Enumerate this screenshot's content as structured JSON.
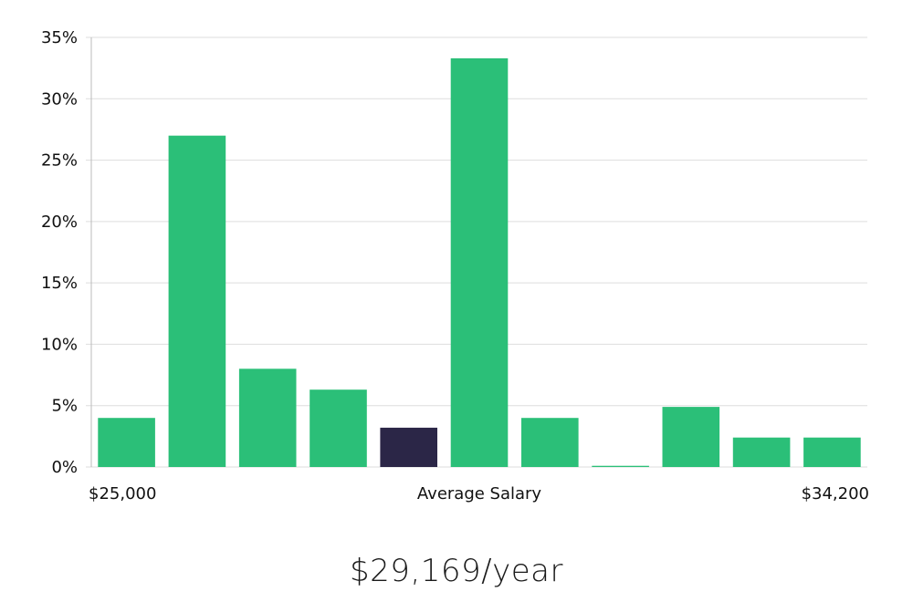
{
  "chart_data": {
    "type": "bar",
    "x_labels": {
      "left": "$25,000",
      "center": "Average Salary",
      "right": "$34,200"
    },
    "values": [
      4,
      27,
      8,
      6.3,
      3.2,
      33.3,
      4,
      0.1,
      4.9,
      2.4,
      2.4
    ],
    "highlight_index": 4,
    "y_ticks": [
      "0%",
      "5%",
      "10%",
      "15%",
      "20%",
      "25%",
      "30%",
      "35%"
    ],
    "ylim": [
      0,
      35
    ],
    "grid": true,
    "colors": {
      "bar": "#2bbf78",
      "highlight": "#2b2647",
      "grid": "#dddddd",
      "axis": "#bbbbbb"
    }
  },
  "average_salary": "$29,169/year"
}
